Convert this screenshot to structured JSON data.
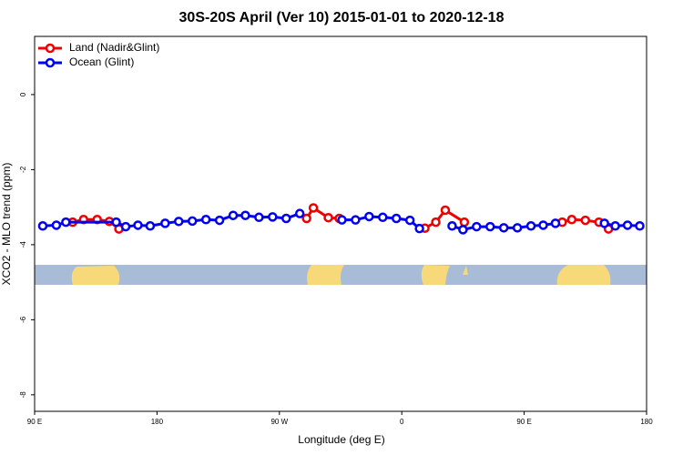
{
  "chart_data": {
    "type": "line",
    "title": "30S-20S April (Ver 10)   2015-01-01 to 2020-12-18",
    "x_label": "Longitude (deg E)",
    "y_label": "XCO2 - MLO trend (ppm)",
    "xlim": [
      90,
      540
    ],
    "ylim": [
      -8.44,
      1.55
    ],
    "xticks": [
      {
        "value": 90,
        "label": "90 E"
      },
      180,
      {
        "value": 270,
        "label": "90 W"
      },
      {
        "value": 360,
        "label": "0"
      },
      {
        "value": 450,
        "label": "90 E"
      },
      {
        "value": 540,
        "label": "180"
      }
    ],
    "yticks": [
      0,
      -2,
      -4,
      -6,
      -8
    ],
    "legend_position": "top-left",
    "series": [
      {
        "name": "Land (Nadir&Glint)",
        "color": "#ee0000",
        "x": [
          118,
          126,
          136,
          145,
          152,
          null,
          290,
          295,
          306,
          314,
          null,
          377,
          385,
          392,
          406,
          null,
          478,
          485,
          495,
          505,
          512
        ],
        "values": [
          -3.4,
          -3.33,
          -3.33,
          -3.38,
          -3.58,
          null,
          -3.3,
          -3.02,
          -3.28,
          -3.3,
          null,
          -3.56,
          -3.4,
          -3.08,
          -3.4,
          null,
          -3.4,
          -3.33,
          -3.35,
          -3.4,
          -3.58
        ]
      },
      {
        "name": "Ocean (Glint)",
        "color": "#0000ee",
        "x": [
          96,
          106,
          113,
          150,
          157,
          166,
          175,
          186,
          196,
          206,
          216,
          226,
          236,
          245,
          255,
          265,
          275,
          285,
          null,
          316,
          326,
          336,
          346,
          356,
          366,
          373,
          null,
          397,
          405,
          415,
          425,
          435,
          445,
          455,
          464,
          473,
          null,
          509,
          517,
          526,
          535
        ],
        "values": [
          -3.5,
          -3.48,
          -3.4,
          -3.4,
          -3.52,
          -3.48,
          -3.5,
          -3.43,
          -3.38,
          -3.37,
          -3.33,
          -3.35,
          -3.22,
          -3.22,
          -3.27,
          -3.26,
          -3.3,
          -3.17,
          null,
          -3.34,
          -3.34,
          -3.25,
          -3.27,
          -3.3,
          -3.35,
          -3.57,
          null,
          -3.5,
          -3.6,
          -3.52,
          -3.52,
          -3.55,
          -3.55,
          -3.5,
          -3.48,
          -3.43,
          null,
          -3.43,
          -3.5,
          -3.48,
          -3.5
        ]
      }
    ]
  }
}
